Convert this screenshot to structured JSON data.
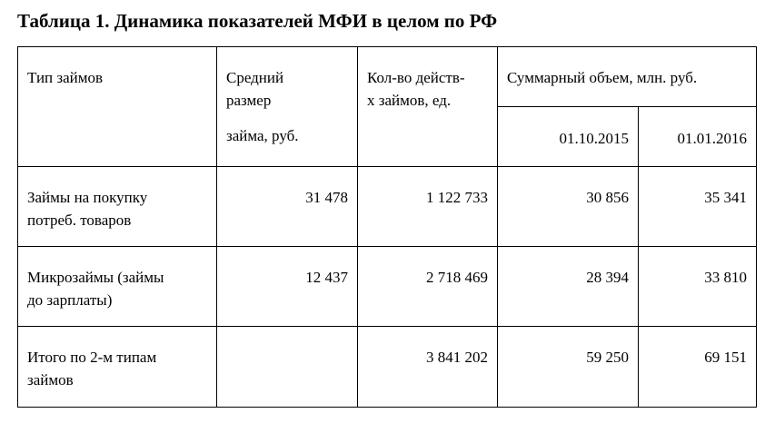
{
  "caption": "Таблица 1. Динамика показателей МФИ в целом по РФ",
  "header": {
    "col_type": "Тип займов",
    "col_avg_line1": "Средний",
    "col_avg_line2": "размер",
    "col_avg_line3": "займа, руб.",
    "col_count_line1": "Кол-во действ-",
    "col_count_line2": "х займов, ед.",
    "col_total": "Суммарный объем, млн. руб.",
    "date1": "01.10.2015",
    "date2": "01.01.2016"
  },
  "rows": [
    {
      "type_line1": "Займы на покупку",
      "type_line2": "потреб. товаров",
      "avg": "31 478",
      "count": "1 122 733",
      "v1": "30 856",
      "v2": "35 341"
    },
    {
      "type_line1": "Микрозаймы (займы",
      "type_line2": "до зарплаты)",
      "avg": "12 437",
      "count": "2 718 469",
      "v1": "28 394",
      "v2": "33 810"
    },
    {
      "type_line1": "Итого по 2-м типам",
      "type_line2": "займов",
      "avg": "",
      "count": "3 841 202",
      "v1": "59 250",
      "v2": "69 151"
    }
  ]
}
